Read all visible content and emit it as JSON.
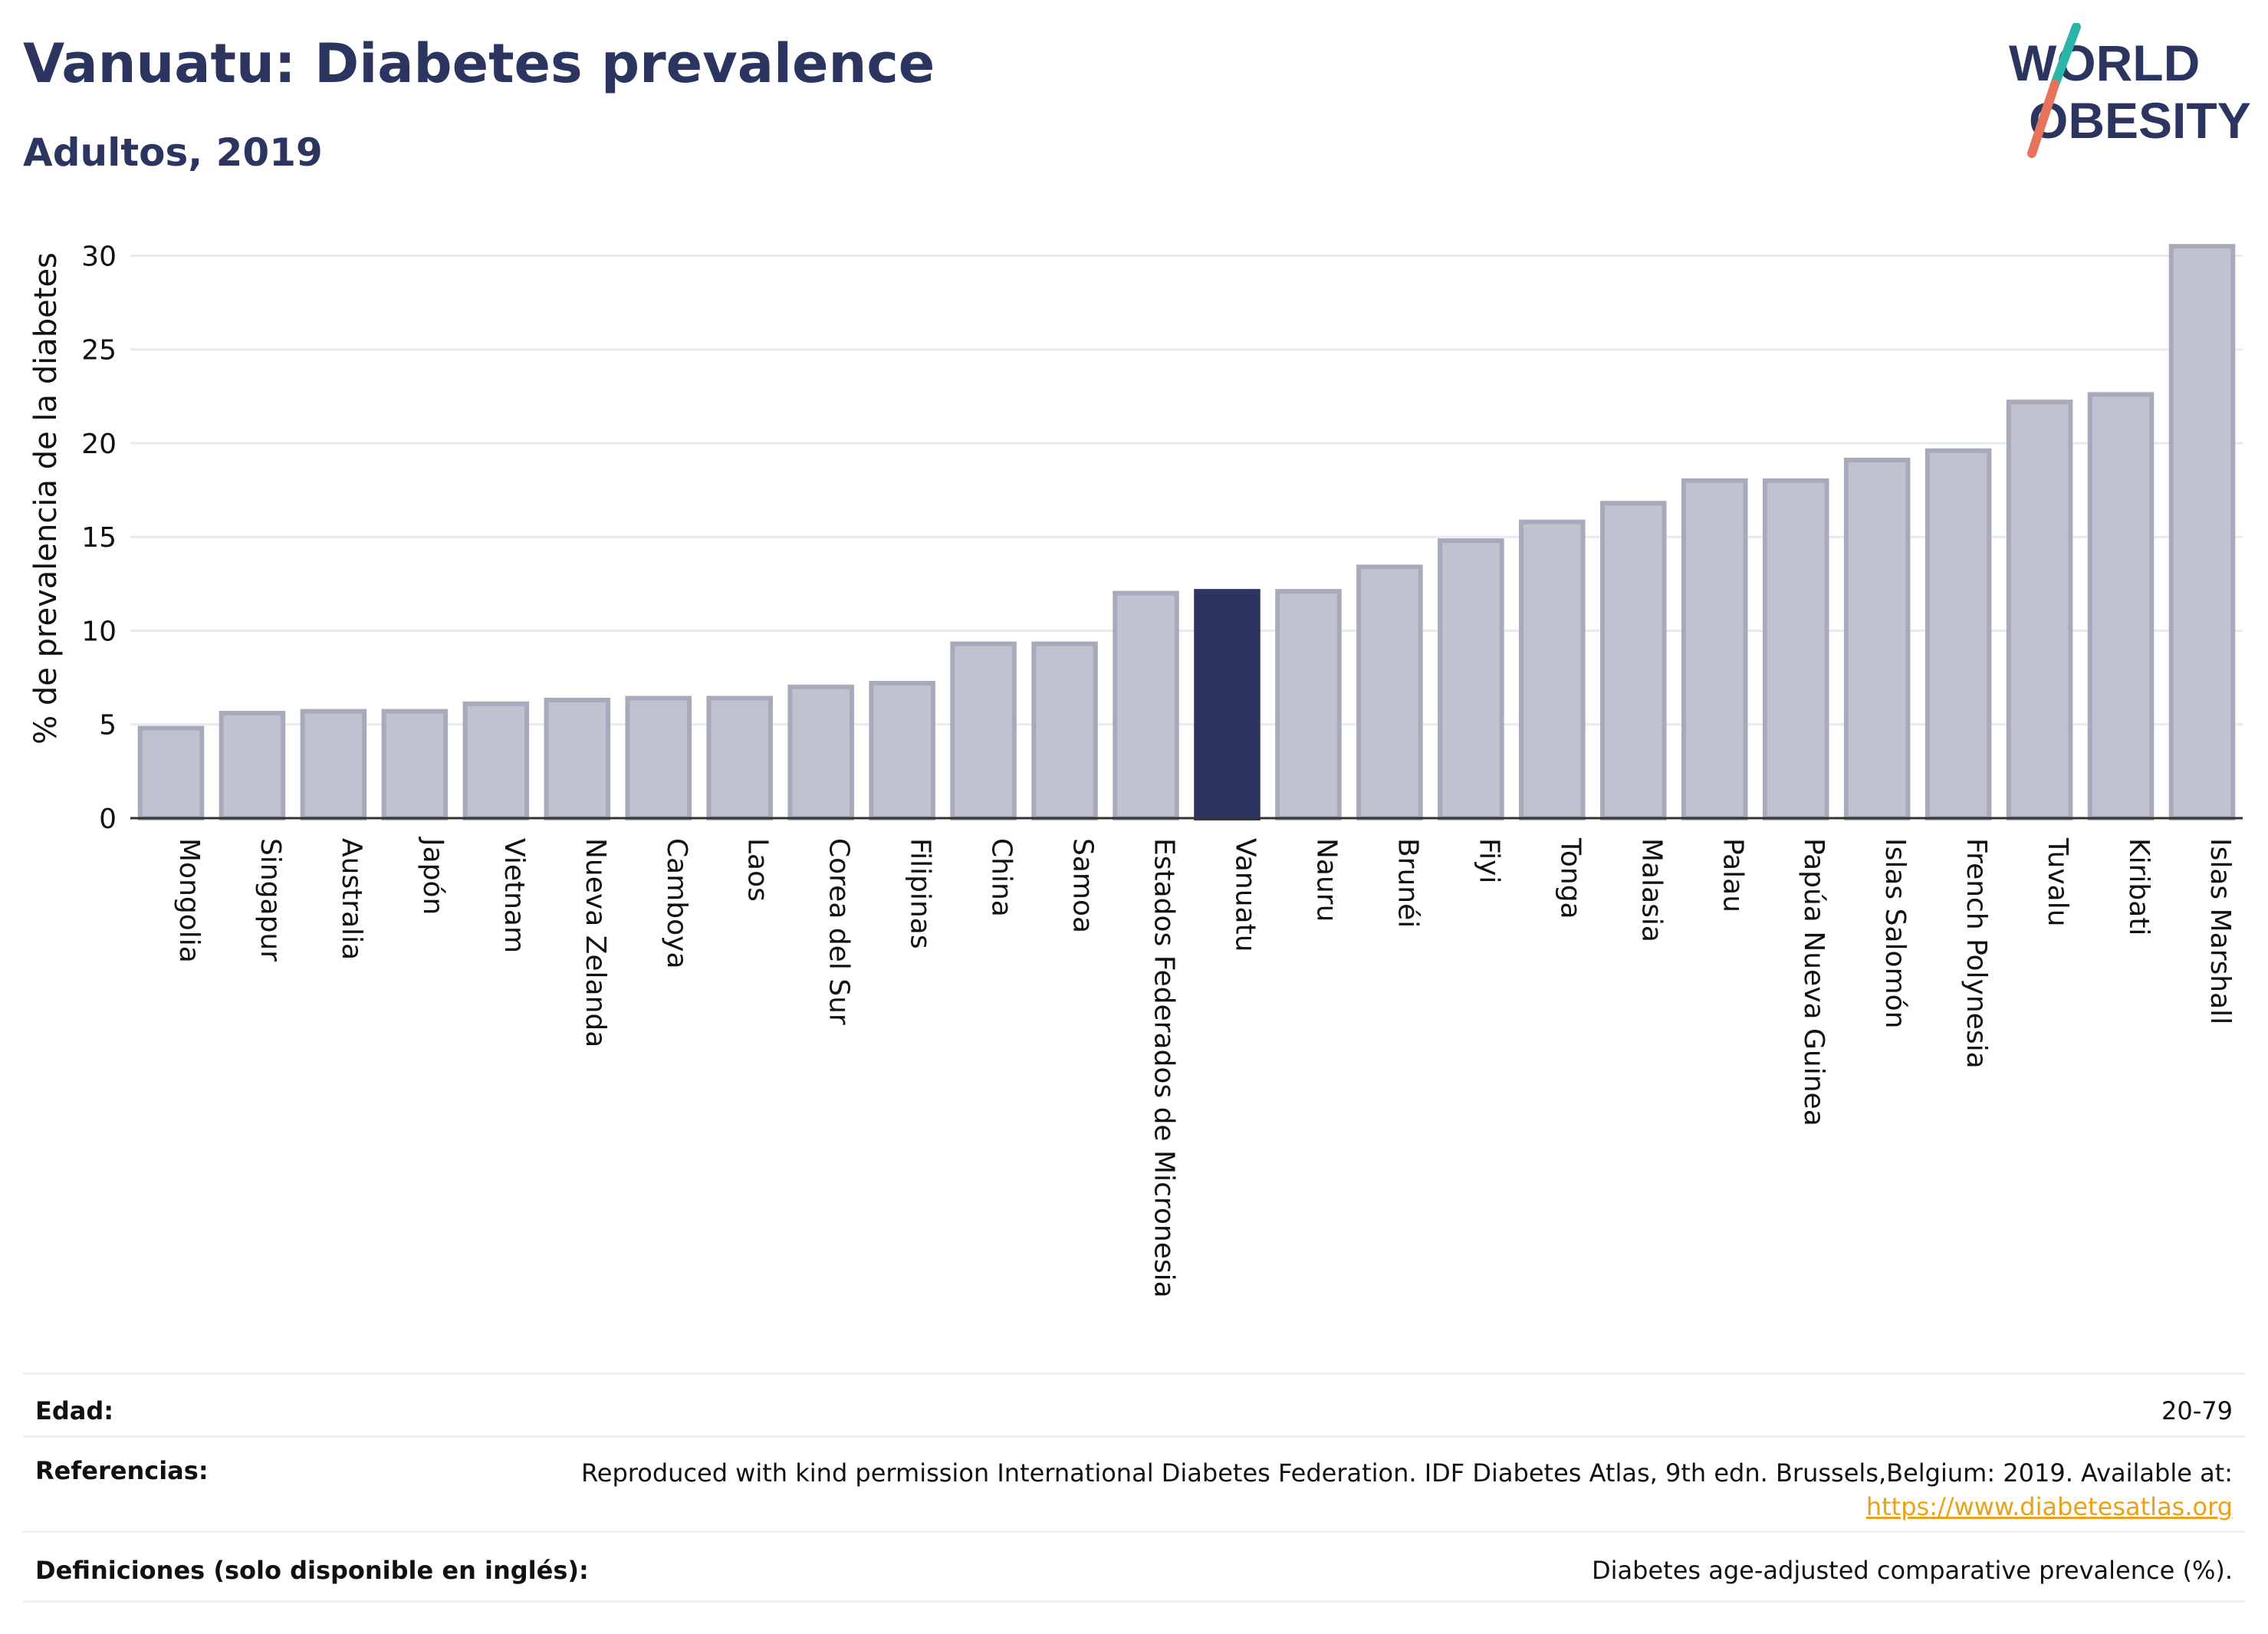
{
  "header": {
    "title": "Vanuatu: Diabetes prevalence",
    "subtitle": "Adultos, 2019",
    "logo_line1": "WORLD",
    "logo_line2": "OBESITY"
  },
  "chart_data": {
    "type": "bar",
    "ylabel": "% de prevalencia de la diabetes",
    "ylim": [
      0,
      31
    ],
    "yticks": [
      0,
      5,
      10,
      15,
      20,
      25,
      30
    ],
    "grid": true,
    "highlight": "Vanuatu",
    "categories": [
      "Mongolia",
      "Singapur",
      "Australia",
      "Japón",
      "Vietnam",
      "Nueva Zelanda",
      "Camboya",
      "Laos",
      "Corea del Sur",
      "Filipinas",
      "China",
      "Samoa",
      "Estados Federados de Micronesia",
      "Vanuatu",
      "Nauru",
      "Brunéi",
      "Fiyi",
      "Tonga",
      "Malasia",
      "Palau",
      "Papúa Nueva Guinea",
      "Islas Salomón",
      "French Polynesia",
      "Tuvalu",
      "Kiribati",
      "Islas Marshall"
    ],
    "values": [
      4.8,
      5.6,
      5.7,
      5.7,
      6.1,
      6.3,
      6.4,
      6.4,
      7.0,
      7.2,
      9.3,
      9.3,
      12.0,
      12.1,
      12.1,
      13.4,
      14.8,
      15.8,
      16.8,
      18.0,
      18.0,
      19.1,
      19.6,
      22.2,
      22.6,
      30.5
    ]
  },
  "colors": {
    "bar": "#c0c3cf",
    "bar_border": "#a6aabb",
    "highlight": "#2b3560",
    "title": "#2b3560",
    "logo_slash_top": "#2bb5a8",
    "logo_slash_bottom": "#e8735c"
  },
  "meta": {
    "age_label": "Edad:",
    "age_value": "20-79",
    "refs_label": "Referencias:",
    "refs_value": "Reproduced with kind permission International Diabetes Federation. IDF Diabetes Atlas, 9th edn. Brussels,Belgium: 2019. Available at:",
    "refs_link": "https://www.diabetesatlas.org",
    "defs_label": "Definiciones (solo disponible en inglés):",
    "defs_value": "Diabetes age-adjusted comparative prevalence (%)."
  }
}
